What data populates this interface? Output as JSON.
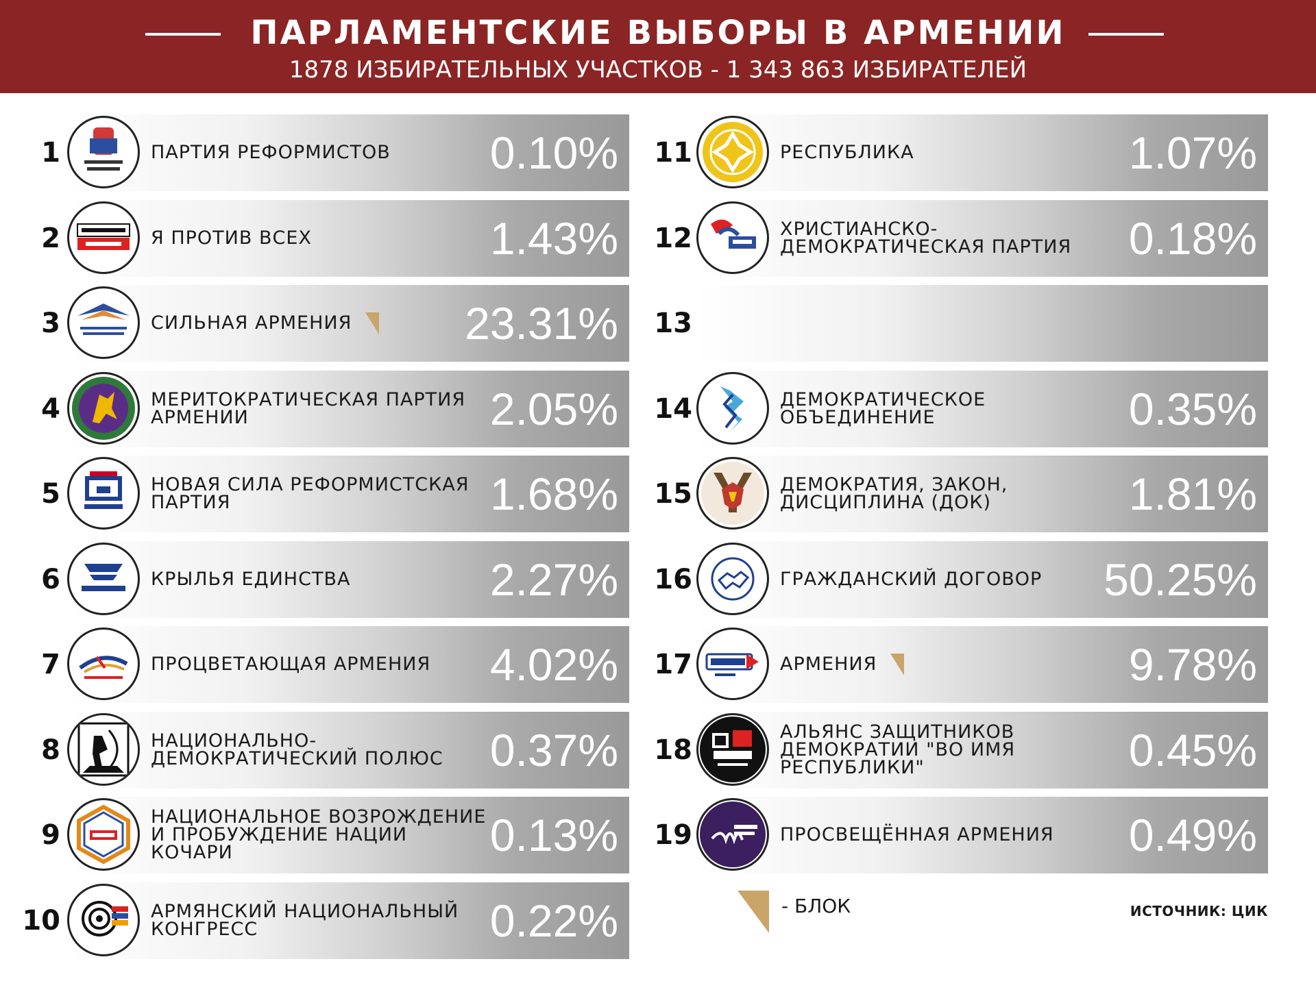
{
  "header": {
    "title": "ПАРЛАМЕНТСКИЕ ВЫБОРЫ В АРМЕНИИ",
    "subtitle": "1878 ИЗБИРАТЕЛЬНЫХ УЧАСТКОВ - 1 343 863 ИЗБИРАТЕЛЕЙ"
  },
  "colors": {
    "header_bg": "#8b2424",
    "bar_light": "#ffffff",
    "bar_dark": "#999999",
    "bloc_marker": "#c9a56a"
  },
  "legend": {
    "bloc_label": "- БЛОК"
  },
  "source": "ИСТОЧНИК: ЦИК",
  "chart_data": {
    "type": "table",
    "columns": [
      "number",
      "party",
      "percent"
    ],
    "rows": [
      {
        "number": "1",
        "logo": "reformists-logo",
        "name": "ПАРТИЯ РЕФОРМИСТОВ",
        "percent": "0.10%",
        "value": 0.1,
        "bloc": false
      },
      {
        "number": "2",
        "logo": "against-all-logo",
        "name": "Я ПРОТИВ ВСЕХ",
        "percent": "1.43%",
        "value": 1.43,
        "bloc": false
      },
      {
        "number": "3",
        "logo": "strong-armenia-logo",
        "name": "СИЛЬНАЯ АРМЕНИЯ",
        "percent": "23.31%",
        "value": 23.31,
        "bloc": true
      },
      {
        "number": "4",
        "logo": "meritocratic-logo",
        "name": "МЕРИТОКРАТИЧЕСКАЯ ПАРТИЯ АРМЕНИИ",
        "percent": "2.05%",
        "value": 2.05,
        "bloc": false
      },
      {
        "number": "5",
        "logo": "new-power-logo",
        "name": "НОВАЯ СИЛА РЕФОРМИСТСКАЯ ПАРТИЯ",
        "percent": "1.68%",
        "value": 1.68,
        "bloc": false
      },
      {
        "number": "6",
        "logo": "wings-of-unity-logo",
        "name": "КРЫЛЬЯ ЕДИНСТВА",
        "percent": "2.27%",
        "value": 2.27,
        "bloc": false
      },
      {
        "number": "7",
        "logo": "prosperous-armenia-logo",
        "name": "ПРОЦВЕТАЮЩАЯ АРМЕНИЯ",
        "percent": "4.02%",
        "value": 4.02,
        "bloc": false
      },
      {
        "number": "8",
        "logo": "national-democratic-logo",
        "name": "НАЦИОНАЛЬНО-ДЕМОКРАТИЧЕСКИЙ ПОЛЮС",
        "percent": "0.37%",
        "value": 0.37,
        "bloc": false
      },
      {
        "number": "9",
        "logo": "kochari-logo",
        "name": "НАЦИОНАЛЬНОЕ ВОЗРОЖДЕНИЕ И ПРОБУЖДЕНИЕ НАЦИИ КОЧАРИ",
        "percent": "0.13%",
        "value": 0.13,
        "bloc": false
      },
      {
        "number": "10",
        "logo": "anc-logo",
        "name": "АРМЯНСКИЙ НАЦИОНАЛЬНЫЙ КОНГРЕСС",
        "percent": "0.22%",
        "value": 0.22,
        "bloc": false
      },
      {
        "number": "11",
        "logo": "republic-logo",
        "name": "РЕСПУБЛИКА",
        "percent": "1.07%",
        "value": 1.07,
        "bloc": false
      },
      {
        "number": "12",
        "logo": "christian-democratic-logo",
        "name": "ХРИСТИАНСКО-ДЕМОКРАТИЧЕСКАЯ ПАРТИЯ",
        "percent": "0.18%",
        "value": 0.18,
        "bloc": false
      },
      {
        "number": "13",
        "logo": "",
        "name": "",
        "percent": "",
        "value": null,
        "bloc": false
      },
      {
        "number": "14",
        "logo": "democratic-union-logo",
        "name": "ДЕМОКРАТИЧЕСКОЕ ОБЪЕДИНЕНИЕ",
        "percent": "0.35%",
        "value": 0.35,
        "bloc": false
      },
      {
        "number": "15",
        "logo": "dok-logo",
        "name": "ДЕМОКРАТИЯ, ЗАКОН, ДИСЦИПЛИНА (ДОК)",
        "percent": "1.81%",
        "value": 1.81,
        "bloc": false
      },
      {
        "number": "16",
        "logo": "civil-contract-logo",
        "name": "ГРАЖДАНСКИЙ ДОГОВОР",
        "percent": "50.25%",
        "value": 50.25,
        "bloc": false
      },
      {
        "number": "17",
        "logo": "armenia-alliance-logo",
        "name": "АРМЕНИЯ",
        "percent": "9.78%",
        "value": 9.78,
        "bloc": true
      },
      {
        "number": "18",
        "logo": "republic-defenders-logo",
        "name": "АЛЬЯНС ЗАЩИТНИКОВ ДЕМОКРАТИИ \"ВО ИМЯ РЕСПУБЛИКИ\"",
        "percent": "0.45%",
        "value": 0.45,
        "bloc": false
      },
      {
        "number": "19",
        "logo": "enlightened-armenia-logo",
        "name": "ПРОСВЕЩЁННАЯ АРМЕНИЯ",
        "percent": "0.49%",
        "value": 0.49,
        "bloc": false
      }
    ]
  }
}
